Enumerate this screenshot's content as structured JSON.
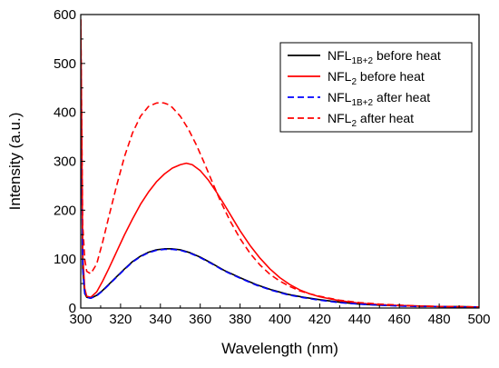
{
  "chart_data": {
    "type": "line",
    "title": "",
    "xlabel": "Wavelength (nm)",
    "ylabel": "Intensity (a.u.)",
    "xlim": [
      300,
      500
    ],
    "ylim": [
      0,
      600
    ],
    "xticks": [
      300,
      320,
      340,
      360,
      380,
      400,
      420,
      440,
      460,
      480,
      500
    ],
    "yticks": [
      0,
      100,
      200,
      300,
      400,
      500,
      600
    ],
    "grid": false,
    "legend_position": "top-right",
    "series": [
      {
        "name": "NFL1B+2 before heat",
        "legend_base": "NFL",
        "legend_sub": "1B+2",
        "legend_rest": " before heat",
        "color": "#000000",
        "style": "solid",
        "x": [
          300,
          301,
          302,
          303,
          305,
          308,
          311,
          314,
          318,
          322,
          326,
          330,
          334,
          338,
          342,
          346,
          350,
          355,
          360,
          366,
          372,
          380,
          388,
          396,
          404,
          412,
          420,
          430,
          440,
          450,
          460,
          470,
          480,
          490,
          500
        ],
        "y": [
          550,
          80,
          30,
          22,
          20,
          26,
          36,
          48,
          64,
          80,
          95,
          106,
          114,
          119,
          121,
          121,
          119,
          113,
          104,
          91,
          77,
          62,
          48,
          37,
          28,
          22,
          17,
          12,
          8,
          6,
          5,
          4,
          3,
          3,
          2
        ]
      },
      {
        "name": "NFL2 before heat",
        "legend_base": "NFL",
        "legend_sub": "2",
        "legend_rest": " before heat",
        "color": "#ff0000",
        "style": "solid",
        "x": [
          300,
          301,
          302,
          303,
          305,
          308,
          311,
          314,
          318,
          322,
          326,
          330,
          334,
          338,
          342,
          346,
          350,
          353,
          356,
          360,
          364,
          368,
          372,
          376,
          380,
          385,
          390,
          395,
          400,
          405,
          410,
          415,
          420,
          430,
          440,
          450,
          460,
          470,
          480,
          490,
          500
        ],
        "y": [
          590,
          110,
          40,
          24,
          22,
          33,
          55,
          80,
          115,
          150,
          182,
          212,
          237,
          258,
          274,
          286,
          293,
          296,
          293,
          281,
          262,
          238,
          212,
          185,
          158,
          128,
          102,
          80,
          62,
          48,
          37,
          29,
          23,
          15,
          10,
          7,
          5,
          4,
          3,
          2,
          2
        ]
      },
      {
        "name": "NFL1B+2 after heat",
        "legend_base": "NFL",
        "legend_sub": "1B+2",
        "legend_rest": " after heat",
        "color": "#0000ff",
        "style": "dashed",
        "x": [
          300,
          301,
          302,
          303,
          305,
          308,
          311,
          314,
          318,
          322,
          326,
          330,
          334,
          338,
          342,
          346,
          350,
          355,
          360,
          366,
          372,
          380,
          388,
          396,
          404,
          412,
          420,
          430,
          440,
          450,
          460,
          470,
          480,
          490,
          500
        ],
        "y": [
          550,
          80,
          30,
          22,
          20,
          25,
          35,
          47,
          63,
          79,
          94,
          105,
          113,
          118,
          120,
          120,
          118,
          112,
          103,
          90,
          76,
          61,
          47,
          36,
          27,
          21,
          16,
          11,
          8,
          6,
          4,
          3,
          3,
          2,
          2
        ]
      },
      {
        "name": "NFL2 after heat",
        "legend_base": "NFL",
        "legend_sub": "2",
        "legend_rest": " after heat",
        "color": "#ff0000",
        "style": "dashed",
        "x": [
          300,
          301,
          302,
          303,
          305,
          308,
          311,
          314,
          318,
          322,
          326,
          330,
          334,
          338,
          340,
          342,
          344,
          346,
          350,
          354,
          358,
          362,
          366,
          370,
          375,
          380,
          385,
          390,
          395,
          400,
          405,
          410,
          415,
          420,
          430,
          440,
          450,
          460,
          470,
          480,
          490,
          500
        ],
        "y": [
          590,
          170,
          100,
          75,
          70,
          90,
          135,
          185,
          250,
          310,
          358,
          392,
          412,
          419,
          420,
          419,
          416,
          410,
          392,
          366,
          334,
          297,
          258,
          220,
          178,
          142,
          112,
          88,
          69,
          55,
          44,
          35,
          29,
          24,
          16,
          11,
          8,
          6,
          4,
          3,
          3,
          2
        ]
      }
    ]
  }
}
